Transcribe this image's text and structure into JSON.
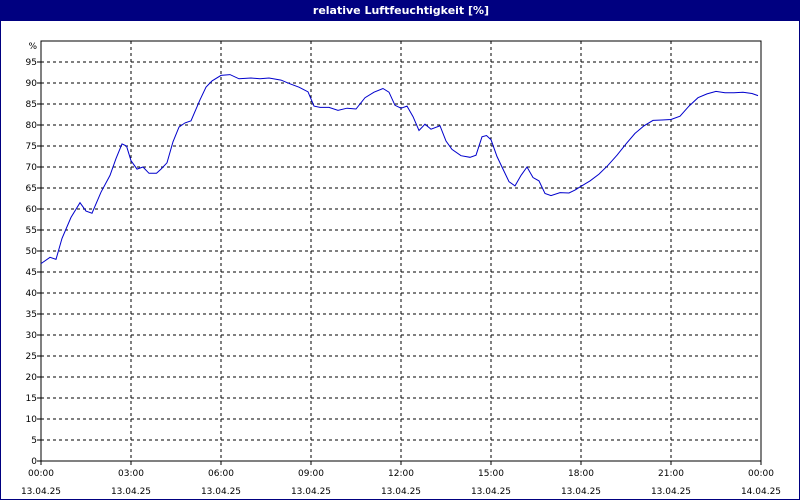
{
  "window": {
    "title": "relative Luftfeuchtigkeit [%]"
  },
  "chart_data": {
    "type": "line",
    "title": "relative Luftfeuchtigkeit [%]",
    "y_unit": "%",
    "ylim": [
      0,
      100
    ],
    "y_ticks": [
      0,
      5,
      10,
      15,
      20,
      25,
      30,
      35,
      40,
      45,
      50,
      55,
      60,
      65,
      70,
      75,
      80,
      85,
      90,
      95
    ],
    "xlim_hours": [
      0,
      24
    ],
    "x_ticks": [
      {
        "hour": 0,
        "time": "00:00",
        "date": "13.04.25"
      },
      {
        "hour": 3,
        "time": "03:00",
        "date": "13.04.25"
      },
      {
        "hour": 6,
        "time": "06:00",
        "date": "13.04.25"
      },
      {
        "hour": 9,
        "time": "09:00",
        "date": "13.04.25"
      },
      {
        "hour": 12,
        "time": "12:00",
        "date": "13.04.25"
      },
      {
        "hour": 15,
        "time": "15:00",
        "date": "13.04.25"
      },
      {
        "hour": 18,
        "time": "18:00",
        "date": "13.04.25"
      },
      {
        "hour": 21,
        "time": "21:00",
        "date": "13.04.25"
      },
      {
        "hour": 24,
        "time": "00:00",
        "date": "14.04.25"
      }
    ],
    "grid": true,
    "series": [
      {
        "color": "#0000cc",
        "x_hours": [
          0,
          0.3,
          0.5,
          0.7,
          1.0,
          1.3,
          1.5,
          1.7,
          2.0,
          2.3,
          2.5,
          2.7,
          2.85,
          3.0,
          3.2,
          3.4,
          3.6,
          3.85,
          4.0,
          4.2,
          4.4,
          4.6,
          4.8,
          5.0,
          5.3,
          5.5,
          5.7,
          6.0,
          6.3,
          6.6,
          7.0,
          7.3,
          7.6,
          8.0,
          8.3,
          8.6,
          8.9,
          9.1,
          9.3,
          9.6,
          9.9,
          10.2,
          10.5,
          10.8,
          11.1,
          11.4,
          11.6,
          11.8,
          12.0,
          12.2,
          12.4,
          12.6,
          12.8,
          13.0,
          13.3,
          13.5,
          13.7,
          14.0,
          14.3,
          14.5,
          14.7,
          14.85,
          15.0,
          15.2,
          15.4,
          15.6,
          15.8,
          16.0,
          16.2,
          16.4,
          16.6,
          16.8,
          17.0,
          17.3,
          17.6,
          17.8,
          18.0,
          18.3,
          18.6,
          18.9,
          19.2,
          19.5,
          19.8,
          20.1,
          20.4,
          20.7,
          21.0,
          21.3,
          21.6,
          21.9,
          22.2,
          22.5,
          22.8,
          23.1,
          23.4,
          23.7,
          23.9
        ],
        "values": [
          47,
          48.5,
          48,
          53,
          58,
          61.5,
          59.5,
          59,
          64,
          68,
          72,
          75.5,
          75,
          71.5,
          69.5,
          70,
          68.5,
          68.5,
          69.5,
          71,
          76,
          79.5,
          80.5,
          81,
          86,
          89,
          90.5,
          91.8,
          92,
          91,
          91.2,
          91,
          91.2,
          90.7,
          89.8,
          89,
          87.9,
          84.5,
          84.2,
          84.2,
          83.5,
          84,
          83.8,
          86.5,
          87.8,
          88.7,
          87.8,
          84.7,
          84,
          84.5,
          82,
          78.7,
          80.2,
          79,
          79.8,
          76.2,
          74.2,
          72.7,
          72.3,
          72.8,
          77.2,
          77.5,
          76.5,
          72.5,
          69.5,
          66.5,
          65.5,
          68,
          70,
          67.5,
          66.7,
          63.7,
          63.2,
          63.9,
          63.8,
          64.5,
          65.4,
          66.7,
          68.3,
          70.4,
          72.8,
          75.5,
          78,
          79.8,
          81.1,
          81.2,
          81.3,
          82.1,
          84.5,
          86.5,
          87.4,
          88,
          87.7,
          87.7,
          87.8,
          87.5,
          87
        ]
      }
    ]
  }
}
